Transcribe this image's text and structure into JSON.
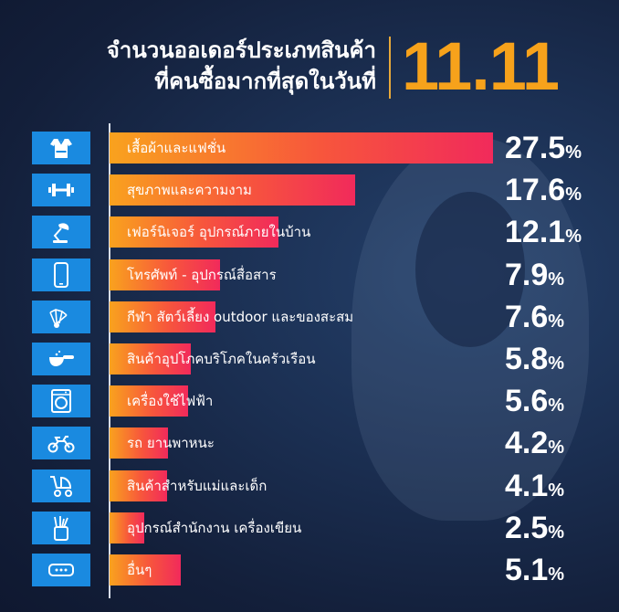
{
  "header": {
    "title_line1": "จำนวนออเดอร์ประเภทสินค้า",
    "title_line2": "ที่คนซื้อมากที่สุดในวันที่",
    "date": "11.11"
  },
  "colors": {
    "date": "#f7a21b",
    "icon_box": "#1a8ae0",
    "bar_gradient": [
      "#f9a21e",
      "#f7563c",
      "#f12a5b"
    ],
    "background": "#1b2f52"
  },
  "chart_data": {
    "type": "bar",
    "orientation": "horizontal",
    "unit": "%",
    "xlim": [
      0,
      27.5
    ],
    "categories": [
      "เสื้อผ้าและแฟชั่น",
      "สุขภาพและความงาม",
      "เฟอร์นิเจอร์ อุปกรณ์ภายในบ้าน",
      "โทรศัพท์ - อุปกรณ์สื่อสาร",
      "กีฬา สัตว์เลี้ยง outdoor และของสะสม",
      "สินค้าอุปโภคบริโภคในครัวเรือน",
      "เครื่องใช้ไฟฟ้า",
      "รถ ยานพาหนะ",
      "สินค้าสำหรับแม่และเด็ก",
      "อุปกรณ์สำนักงาน เครื่องเขียน",
      "อื่นๆ"
    ],
    "values": [
      27.5,
      17.6,
      12.1,
      7.9,
      7.6,
      5.8,
      5.6,
      4.2,
      4.1,
      2.5,
      5.1
    ],
    "value_labels": [
      "27.5",
      "17.6",
      "12.1",
      "7.9",
      "7.6",
      "5.8",
      "5.6",
      "4.2",
      "4.1",
      "2.5",
      "5.1"
    ],
    "icons": [
      "clothing-icon",
      "dumbbell-icon",
      "lamp-icon",
      "phone-icon",
      "shuttlecock-icon",
      "measuring-scoop-icon",
      "washing-machine-icon",
      "motorcycle-icon",
      "stroller-icon",
      "pencil-cup-icon",
      "more-icon"
    ]
  }
}
